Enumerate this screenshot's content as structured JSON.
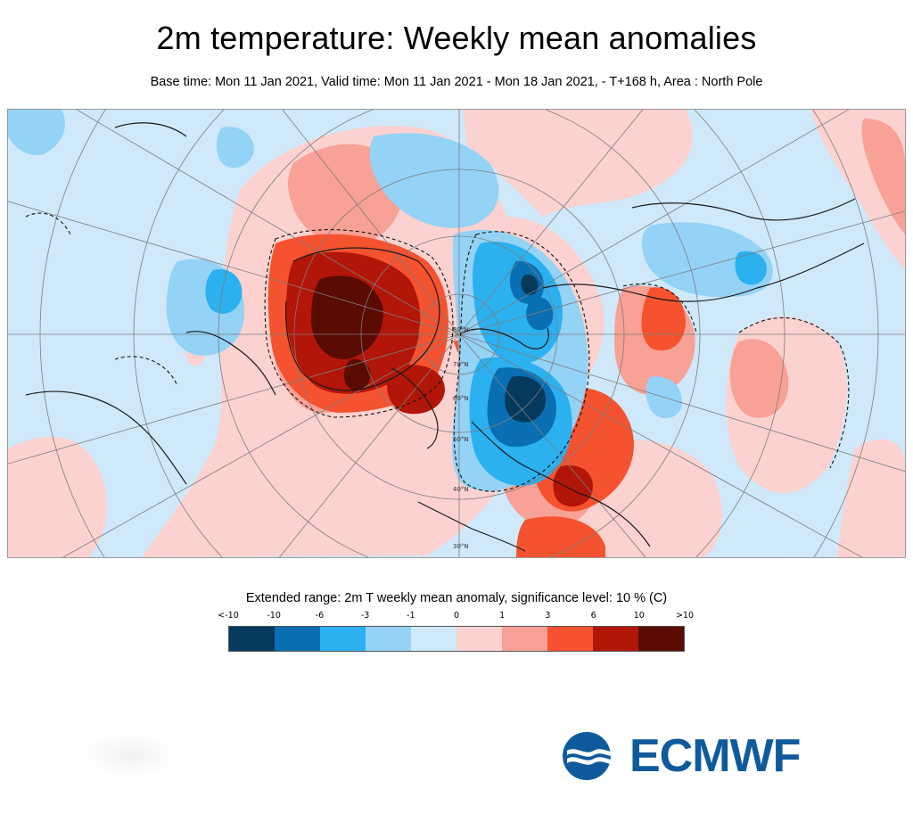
{
  "header": {
    "title": "2m temperature: Weekly mean anomalies",
    "subtitle": "Base time: Mon 11 Jan 2021, Valid time: Mon 11 Jan 2021 - Mon 18 Jan 2021, - T+168 h, Area : North Pole"
  },
  "map": {
    "projection": "polar-stereographic",
    "area": "North Pole",
    "latitude_labels": [
      "80°N",
      "70°N",
      "60°N",
      "50°N",
      "40°N",
      "30°N"
    ],
    "colors": {
      "ocean_neutral_negative": "#cfe9fb",
      "land_outline": "#1a1a1a",
      "graticule": "#7d7d7d",
      "significance_contour": "#111111"
    }
  },
  "legend": {
    "caption": "Extended range: 2m T weekly mean anomaly, significance level: 10 % (C)",
    "ticks": [
      "<-10",
      "-10",
      "-6",
      "-3",
      "-1",
      "0",
      "1",
      "3",
      "6",
      "10",
      ">10"
    ],
    "colors": [
      "#063a5c",
      "#0a6fb2",
      "#2bb0f0",
      "#94d2f6",
      "#cfe9fb",
      "#fbd2cf",
      "#f8a196",
      "#f5522f",
      "#b21608",
      "#5a0b02"
    ]
  },
  "logo": {
    "text": "ECMWF",
    "color": "#0f5a9c",
    "icon": "ecmwf-globe-logo"
  }
}
